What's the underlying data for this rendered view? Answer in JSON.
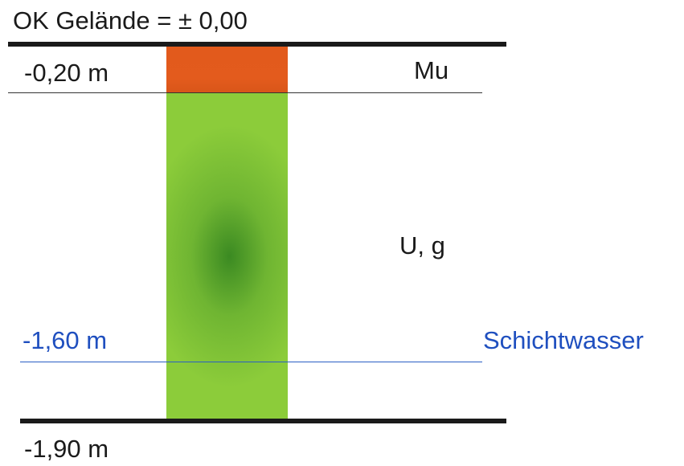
{
  "profile": {
    "ground_label": "OK Gelände = ± 0,00",
    "layers": [
      {
        "depth_label": "-0,20 m",
        "soil_label": "Mu",
        "color": "#e35b1d"
      },
      {
        "depth_label": "-1,90 m",
        "soil_label": "U, g",
        "color": "#8ccc3a"
      }
    ],
    "water": {
      "depth_label": "-1,60 m",
      "label": "Schichtwasser",
      "color": "#1f4fbf"
    }
  }
}
